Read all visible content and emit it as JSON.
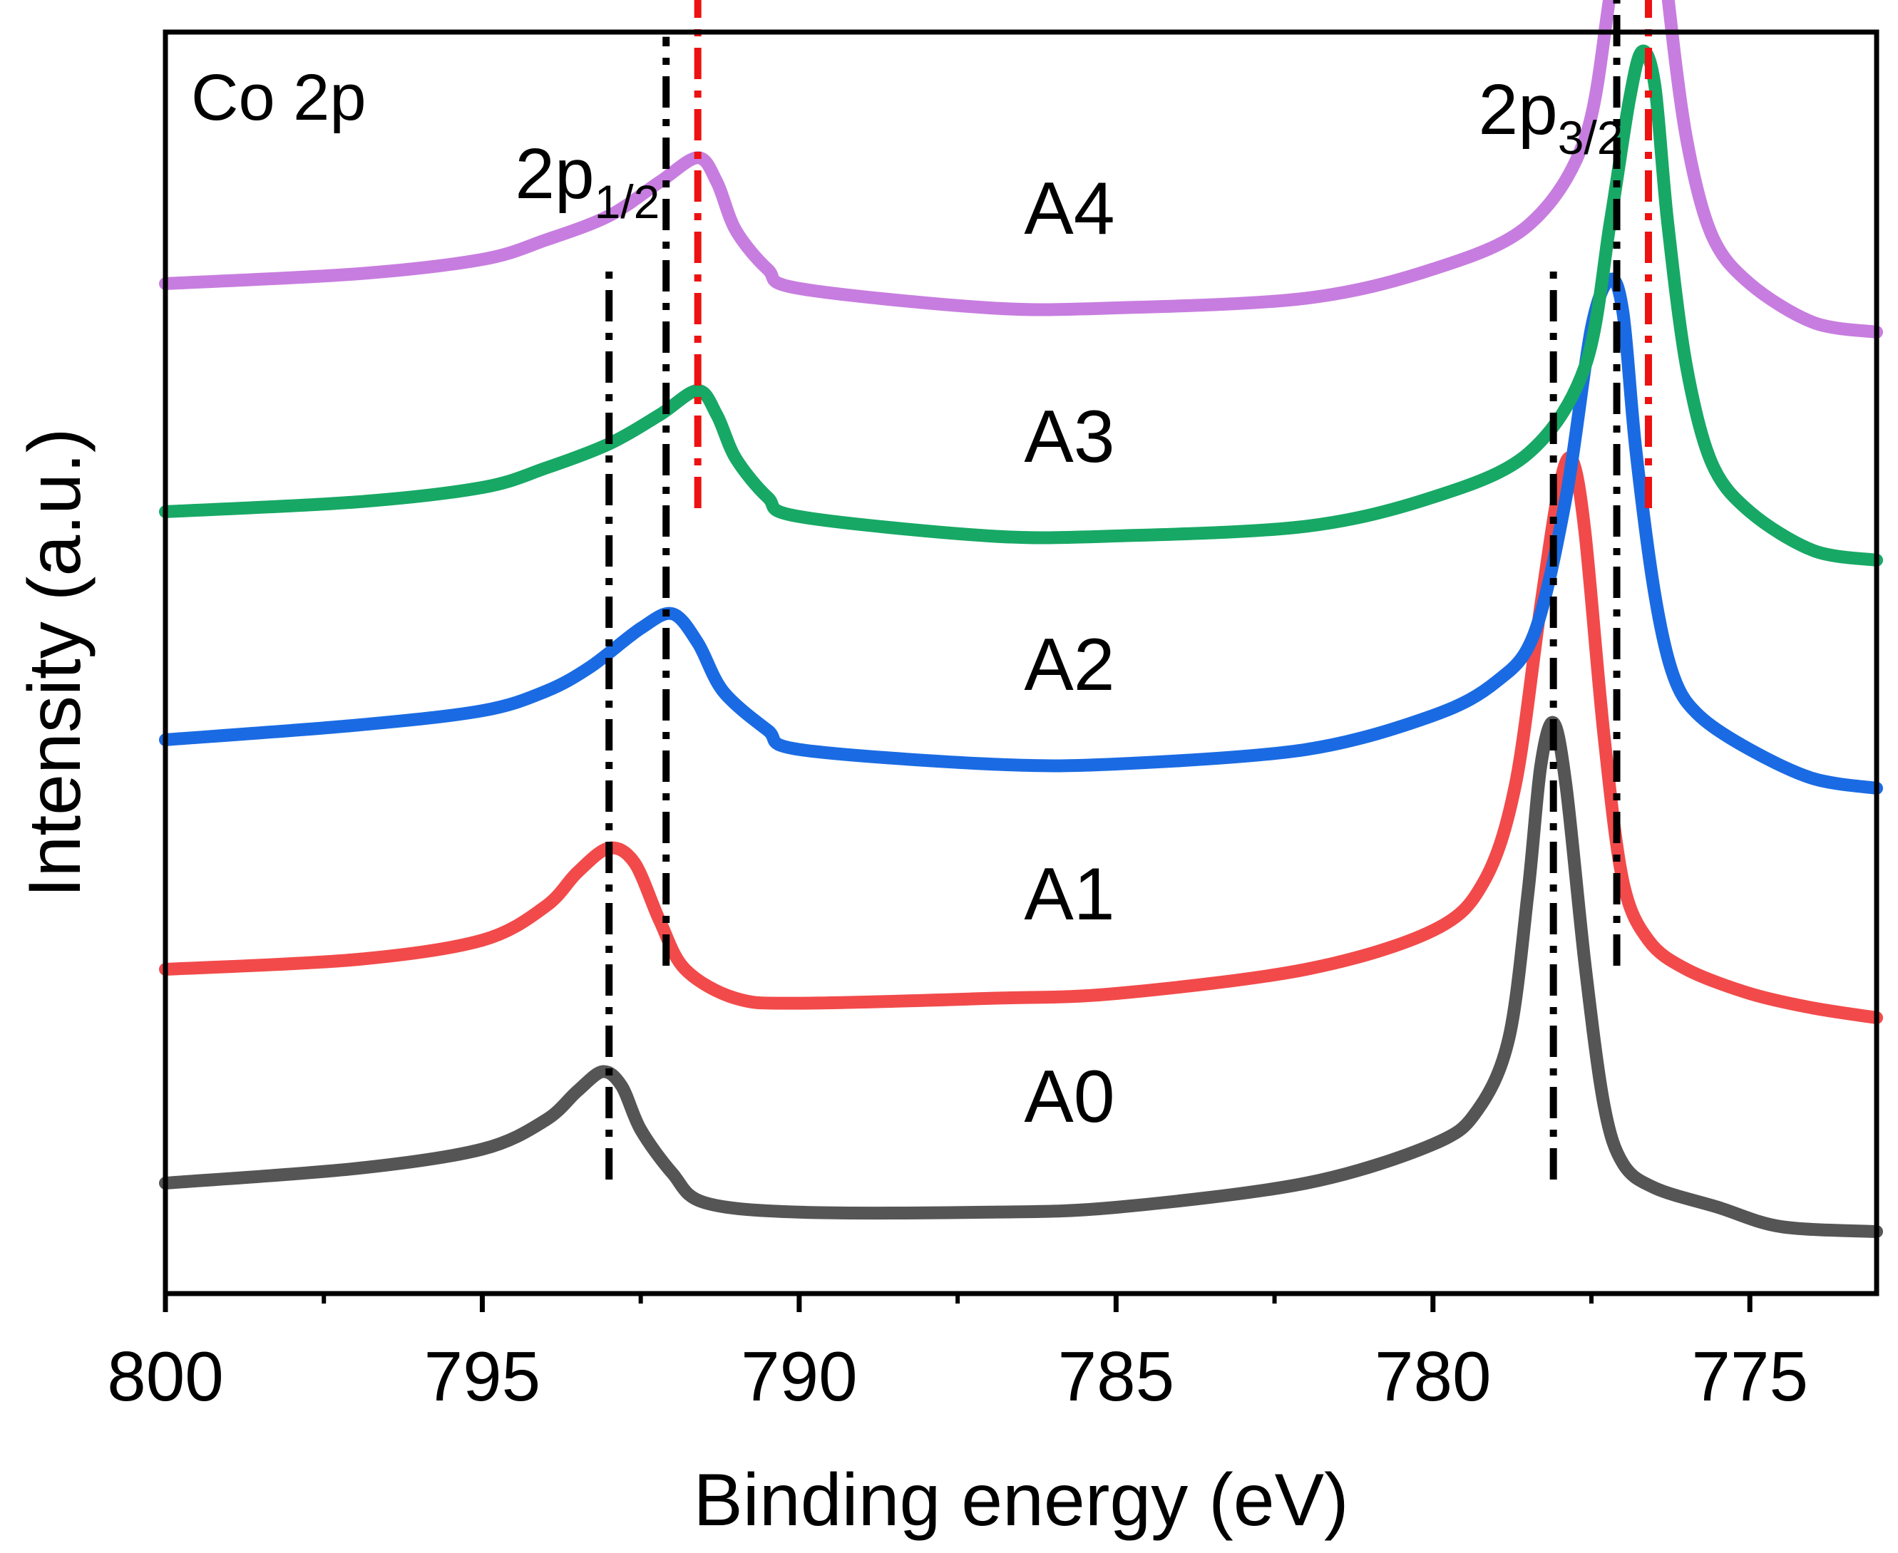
{
  "chart_data": {
    "type": "line",
    "panel_label": "Co 2p",
    "xlabel": "Binding energy (eV)",
    "ylabel": "Intensity (a.u.)",
    "xlim": [
      800,
      773
    ],
    "x_reversed": true,
    "xticks": [
      800,
      795,
      790,
      785,
      780,
      775
    ],
    "xticks_minor": [
      797.5,
      792.5,
      787.5,
      782.5,
      777.5
    ],
    "y_ticks_shown": false,
    "grid": false,
    "peak_labels": [
      {
        "base": "2p",
        "sub": "1/2",
        "x": 792.2
      },
      {
        "base": "2p",
        "sub": "3/2",
        "x": 777.0
      }
    ],
    "series": [
      {
        "name": "A0",
        "color": "#555555",
        "x": [
          800,
          797,
          795,
          794,
          793.5,
          793.1,
          792.8,
          792.5,
          792.0,
          791.5,
          790,
          787,
          785,
          782,
          780,
          779.3,
          778.8,
          778.5,
          778.3,
          778.1,
          777.9,
          777.6,
          777.3,
          777.0,
          776.5,
          775.5,
          774.5,
          773
        ],
        "y": [
          0,
          0.03,
          0.07,
          0.13,
          0.19,
          0.23,
          0.2,
          0.11,
          0.02,
          -0.04,
          -0.06,
          -0.06,
          -0.05,
          0.0,
          0.08,
          0.15,
          0.3,
          0.6,
          0.86,
          0.95,
          0.82,
          0.45,
          0.16,
          0.04,
          -0.01,
          -0.05,
          -0.09,
          -0.1
        ]
      },
      {
        "name": "A1",
        "color": "#f24a4a",
        "x": [
          800,
          797,
          795,
          794,
          793.5,
          793.0,
          792.6,
          792.2,
          791.8,
          791.0,
          790,
          787,
          785,
          782,
          780,
          779.2,
          778.7,
          778.3,
          778.0,
          777.8,
          777.6,
          777.3,
          777.0,
          776.6,
          776.0,
          775,
          774,
          773
        ],
        "y": [
          0,
          0.02,
          0.06,
          0.13,
          0.2,
          0.25,
          0.22,
          0.1,
          0.0,
          -0.06,
          -0.07,
          -0.06,
          -0.05,
          0.0,
          0.08,
          0.18,
          0.38,
          0.75,
          1.0,
          1.05,
          0.9,
          0.48,
          0.18,
          0.06,
          0.0,
          -0.05,
          -0.08,
          -0.1
        ]
      },
      {
        "name": "A2",
        "color": "#1a6be3",
        "x": [
          800,
          797,
          795,
          794,
          793.3,
          792.5,
          792.0,
          791.6,
          791.2,
          790.5,
          790,
          787,
          785,
          782,
          780,
          779.0,
          778.4,
          777.9,
          777.5,
          777.2,
          777.0,
          776.8,
          776.5,
          776.2,
          775.8,
          775.0,
          774.0,
          773
        ],
        "y": [
          0,
          0.03,
          0.06,
          0.1,
          0.15,
          0.23,
          0.26,
          0.2,
          0.1,
          0.02,
          -0.02,
          -0.05,
          -0.05,
          -0.02,
          0.05,
          0.12,
          0.22,
          0.5,
          0.85,
          0.95,
          0.88,
          0.6,
          0.3,
          0.13,
          0.05,
          -0.02,
          -0.08,
          -0.1
        ]
      },
      {
        "name": "A3",
        "color": "#17a865",
        "x": [
          800,
          797,
          795,
          794,
          793.0,
          792.2,
          791.6,
          791.3,
          791.0,
          790.5,
          790,
          787,
          785,
          782,
          780,
          778.5,
          777.6,
          777.2,
          776.9,
          776.7,
          776.5,
          776.3,
          776.0,
          775.6,
          775.0,
          774.0,
          773
        ],
        "y": [
          0,
          0.02,
          0.05,
          0.09,
          0.14,
          0.2,
          0.25,
          0.2,
          0.11,
          0.03,
          -0.01,
          -0.05,
          -0.05,
          -0.03,
          0.03,
          0.12,
          0.3,
          0.6,
          0.85,
          0.95,
          0.88,
          0.6,
          0.3,
          0.1,
          0.0,
          -0.08,
          -0.1
        ]
      },
      {
        "name": "A4",
        "color": "#c77ddf",
        "x": [
          800,
          797,
          795,
          794,
          793.0,
          792.2,
          791.6,
          791.3,
          791.0,
          790.5,
          790,
          787,
          785,
          782,
          780,
          778.5,
          777.6,
          777.2,
          776.9,
          776.7,
          776.5,
          776.3,
          776.0,
          775.6,
          775.0,
          774.0,
          773
        ],
        "y": [
          0,
          0.02,
          0.05,
          0.09,
          0.14,
          0.21,
          0.26,
          0.21,
          0.11,
          0.03,
          -0.01,
          -0.05,
          -0.05,
          -0.03,
          0.03,
          0.12,
          0.3,
          0.6,
          0.85,
          0.95,
          0.88,
          0.6,
          0.3,
          0.1,
          0.0,
          -0.08,
          -0.1
        ]
      }
    ],
    "reference_lines": [
      {
        "x": 793.0,
        "style": "dashdot",
        "color": "#000000",
        "from_series": "A0",
        "to_series": "A2"
      },
      {
        "x": 792.1,
        "style": "dashdot",
        "color": "#000000",
        "from_series": "A1",
        "to_series": "A3"
      },
      {
        "x": 778.1,
        "style": "dashdot",
        "color": "#000000",
        "from_series": "A0",
        "to_series": "A2"
      },
      {
        "x": 777.1,
        "style": "dashdot",
        "color": "#000000",
        "from_series": "A1",
        "to_series": "A4"
      },
      {
        "x": 791.6,
        "style": "dashdot",
        "color": "#ee1111",
        "from_series": "A3",
        "to_series": "A4"
      },
      {
        "x": 776.6,
        "style": "dashdot",
        "color": "#ee1111",
        "from_series": "A3",
        "to_series": "A4"
      }
    ]
  }
}
